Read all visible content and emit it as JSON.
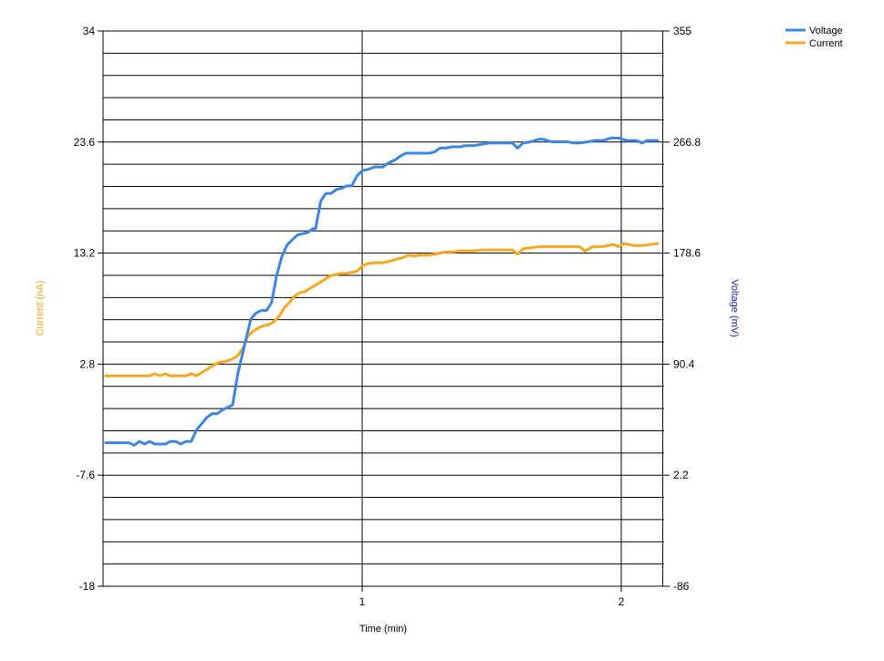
{
  "chart_data": {
    "type": "line",
    "xlabel": "Time (min)",
    "y_left_label": "Current (nA)",
    "y_right_label": "Voltage (mV)",
    "x_range": [
      0,
      2.16
    ],
    "x_ticks": [
      1,
      2
    ],
    "x_tick_labels": [
      "1",
      "2"
    ],
    "y_left_range": [
      -18,
      34
    ],
    "y_left_ticks": [
      34,
      23.6,
      13.2,
      2.8,
      -7.6,
      -18
    ],
    "y_left_tick_labels": [
      "34",
      "23.6",
      "13.2",
      "2.8",
      "-7.6",
      "-18"
    ],
    "y_right_range": [
      -86,
      355
    ],
    "y_right_ticks": [
      355,
      266.8,
      178.6,
      90.4,
      2.2,
      -86
    ],
    "y_right_tick_labels": [
      "355",
      "266.8",
      "178.6",
      "90.4",
      "2.2",
      "-86"
    ],
    "grid": {
      "horizontal_lines": 25,
      "vertical_at": [
        0,
        1,
        2,
        2.16
      ]
    },
    "legend_position": "top-right",
    "colors": {
      "voltage": "#3d85e0",
      "current": "#f5a623",
      "left_title": "#f5a623",
      "right_title": "#1f2fa0"
    },
    "series": [
      {
        "name": "Voltage",
        "axis": "right",
        "x": [
          0.01,
          0.1,
          0.12,
          0.14,
          0.16,
          0.18,
          0.2,
          0.22,
          0.24,
          0.26,
          0.28,
          0.3,
          0.32,
          0.34,
          0.36,
          0.38,
          0.4,
          0.42,
          0.44,
          0.46,
          0.5,
          0.52,
          0.55,
          0.57,
          0.59,
          0.61,
          0.63,
          0.65,
          0.67,
          0.69,
          0.71,
          0.73,
          0.75,
          0.77,
          0.79,
          0.81,
          0.82,
          0.84,
          0.86,
          0.88,
          0.9,
          0.92,
          0.94,
          0.96,
          0.98,
          1.0,
          1.02,
          1.05,
          1.08,
          1.1,
          1.13,
          1.15,
          1.17,
          1.2,
          1.23,
          1.26,
          1.28,
          1.3,
          1.32,
          1.35,
          1.38,
          1.4,
          1.43,
          1.46,
          1.49,
          1.52,
          1.55,
          1.58,
          1.6,
          1.62,
          1.65,
          1.68,
          1.7,
          1.73,
          1.76,
          1.79,
          1.82,
          1.84,
          1.87,
          1.9,
          1.93,
          1.96,
          1.99,
          2.02,
          2.04,
          2.06,
          2.08,
          2.1,
          2.12,
          2.14
        ],
        "y": [
          28,
          28,
          26,
          29,
          27,
          29,
          27,
          27,
          27,
          29,
          29,
          27,
          29,
          29,
          38,
          43,
          48,
          51,
          51,
          54,
          58,
          83,
          109,
          126,
          131,
          133,
          133,
          139,
          161,
          176,
          185,
          189,
          193,
          194,
          195,
          198,
          198,
          220,
          226,
          226,
          229,
          230,
          232,
          232,
          240,
          244,
          245,
          247,
          247,
          250,
          253,
          256,
          258,
          258,
          258,
          258,
          259,
          262,
          262,
          263,
          263,
          264,
          264,
          265,
          266,
          266,
          266,
          266,
          262,
          266,
          267,
          269,
          269,
          267,
          267,
          267,
          266,
          266,
          267,
          268,
          268,
          270,
          270,
          268,
          268,
          268,
          266,
          268,
          268,
          268
        ]
      },
      {
        "name": "Current",
        "axis": "left",
        "x": [
          0.01,
          0.1,
          0.15,
          0.18,
          0.2,
          0.22,
          0.24,
          0.26,
          0.28,
          0.3,
          0.32,
          0.34,
          0.36,
          0.38,
          0.4,
          0.42,
          0.44,
          0.46,
          0.48,
          0.5,
          0.52,
          0.54,
          0.56,
          0.58,
          0.6,
          0.62,
          0.64,
          0.66,
          0.68,
          0.7,
          0.72,
          0.74,
          0.76,
          0.78,
          0.8,
          0.82,
          0.84,
          0.86,
          0.88,
          0.9,
          0.92,
          0.94,
          0.96,
          0.98,
          1.0,
          1.02,
          1.05,
          1.08,
          1.1,
          1.13,
          1.16,
          1.18,
          1.2,
          1.22,
          1.25,
          1.28,
          1.3,
          1.32,
          1.35,
          1.38,
          1.4,
          1.43,
          1.46,
          1.49,
          1.52,
          1.55,
          1.58,
          1.6,
          1.62,
          1.65,
          1.68,
          1.7,
          1.75,
          1.8,
          1.84,
          1.86,
          1.89,
          1.92,
          1.95,
          1.97,
          1.99,
          2.01,
          2.03,
          2.05,
          2.08,
          2.11,
          2.14
        ],
        "y": [
          1.7,
          1.7,
          1.7,
          1.7,
          1.9,
          1.7,
          1.9,
          1.7,
          1.7,
          1.7,
          1.7,
          1.9,
          1.7,
          2.0,
          2.3,
          2.6,
          2.9,
          3.0,
          3.1,
          3.3,
          3.6,
          4.3,
          5.5,
          5.9,
          6.2,
          6.4,
          6.5,
          6.8,
          7.3,
          8.1,
          8.6,
          9.2,
          9.5,
          9.6,
          9.9,
          10.2,
          10.5,
          10.8,
          11.1,
          11.2,
          11.3,
          11.3,
          11.4,
          11.5,
          12.0,
          12.2,
          12.3,
          12.3,
          12.4,
          12.6,
          12.8,
          13.0,
          12.9,
          13.0,
          13.0,
          13.1,
          13.2,
          13.3,
          13.3,
          13.4,
          13.4,
          13.4,
          13.5,
          13.5,
          13.5,
          13.5,
          13.5,
          13.1,
          13.6,
          13.7,
          13.8,
          13.8,
          13.8,
          13.8,
          13.8,
          13.4,
          13.8,
          13.8,
          13.9,
          14.0,
          13.8,
          14.1,
          14.0,
          13.9,
          13.9,
          14.0,
          14.1
        ]
      }
    ]
  }
}
